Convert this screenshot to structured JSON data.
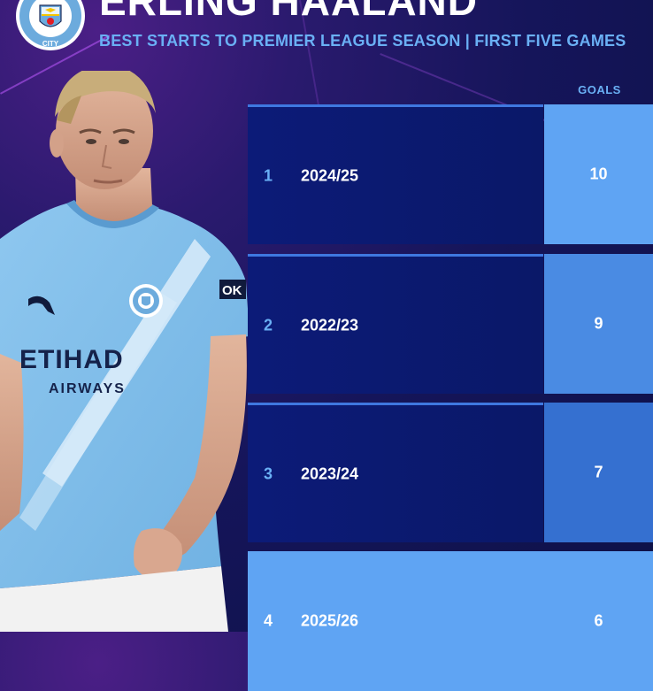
{
  "header": {
    "crest_text_top": "MANCHESTER",
    "crest_text_bottom": "CITY",
    "title": "ERLING HAALAND",
    "subtitle": "BEST STARTS TO PREMIER LEAGUE SEASON | FIRST FIVE GAMES"
  },
  "table": {
    "goals_header": "GOALS",
    "rows": [
      {
        "rank": "1",
        "season": "2024/25",
        "goals": "10",
        "goals_bg": "#5fa4f3"
      },
      {
        "rank": "2",
        "season": "2022/23",
        "goals": "9",
        "goals_bg": "#4a8be3"
      },
      {
        "rank": "3",
        "season": "2023/24",
        "goals": "7",
        "goals_bg": "#3570d0"
      },
      {
        "rank": "4",
        "season": "2025/26",
        "goals": "6",
        "goals_bg": "#5fa4f3"
      }
    ]
  },
  "shirt": {
    "sponsor": "ETIHAD",
    "sponsor_sub": "AIRWAYS",
    "sleeve_sponsor": "OK"
  },
  "colors": {
    "sky_blue": "#6ab0f5",
    "row_dark": "#0c1b78",
    "bg": "#15155a"
  }
}
